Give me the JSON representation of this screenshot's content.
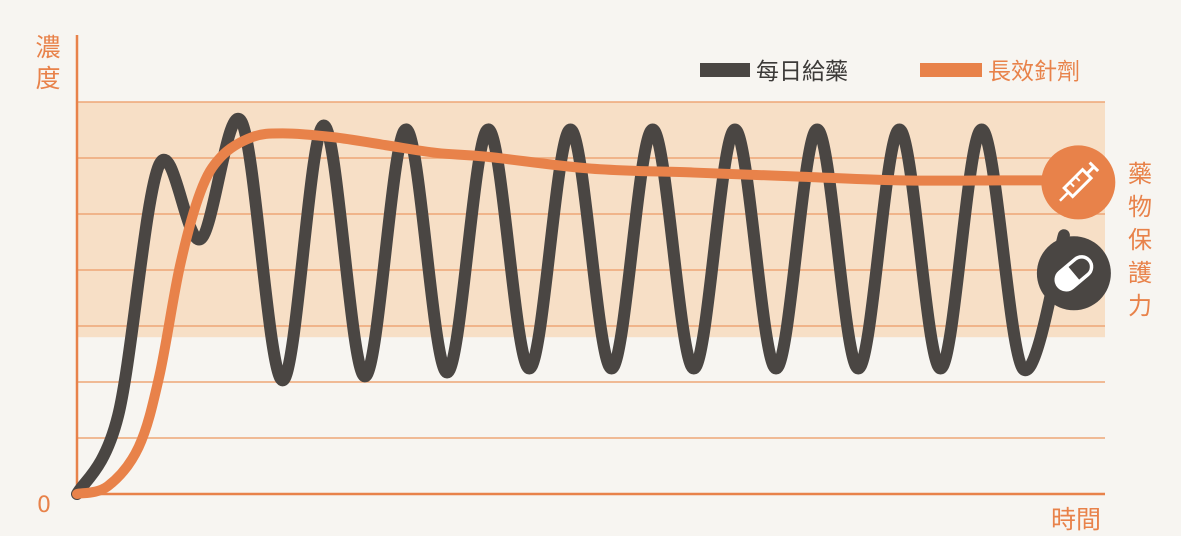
{
  "chart_data": {
    "type": "line",
    "title": "",
    "ylabel": "濃度",
    "xlabel": "時間",
    "origin_label": "0",
    "band_label": "藥物保護力",
    "legend_position": "top-right",
    "ylim": [
      0,
      100
    ],
    "xlim": [
      0,
      100
    ],
    "protective_band": [
      40,
      100
    ],
    "grid": true,
    "series": [
      {
        "name": "每日給藥",
        "color": "#4a4643",
        "icon": "pill-icon",
        "x": [
          0,
          4,
          8,
          12,
          16,
          20,
          24,
          28,
          32,
          36,
          40,
          44,
          48,
          52,
          56,
          60,
          64,
          68,
          72,
          76,
          80,
          84,
          88,
          92,
          96
        ],
        "values": [
          0,
          20,
          84,
          65,
          95,
          29,
          94,
          30,
          93,
          31,
          93,
          32,
          93,
          32,
          93,
          32,
          93,
          32,
          93,
          32,
          93,
          32,
          93,
          32,
          66
        ]
      },
      {
        "name": "長效針劑",
        "color": "#e8824a",
        "icon": "syringe-icon",
        "x": [
          0,
          3,
          6,
          8,
          10,
          12,
          14,
          17,
          20,
          25,
          30,
          35,
          40,
          50,
          60,
          70,
          80,
          90,
          94
        ],
        "values": [
          0,
          2,
          12,
          30,
          58,
          77,
          86,
          91,
          92,
          91,
          89,
          87,
          86,
          83,
          82,
          81,
          80,
          80,
          80
        ]
      }
    ]
  }
}
